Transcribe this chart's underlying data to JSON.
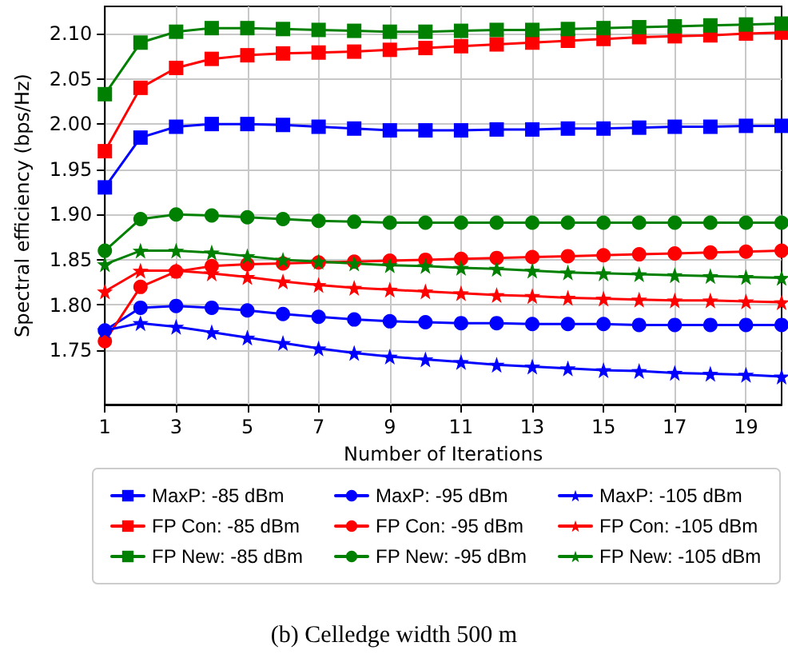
{
  "chart_data": {
    "type": "line",
    "xlabel": "Number of Iterations",
    "ylabel": "Spectral efficiency (bps/Hz)",
    "annotations": [
      "(b) Celledge width 500 m"
    ],
    "x": [
      1,
      2,
      3,
      4,
      5,
      6,
      7,
      8,
      9,
      10,
      11,
      12,
      13,
      14,
      15,
      16,
      17,
      18,
      19,
      20
    ],
    "xlim": [
      1,
      20
    ],
    "xticks": [
      1,
      3,
      5,
      7,
      9,
      11,
      13,
      15,
      17,
      19
    ],
    "ylim": [
      1.69,
      2.13
    ],
    "yticks": [
      {
        "value": 1.75,
        "label": "1.75"
      },
      {
        "value": 1.8,
        "label": "1.80"
      },
      {
        "value": 1.85,
        "label": "1.85"
      },
      {
        "value": 1.9,
        "label": "1.90"
      },
      {
        "value": 1.95,
        "label": "1.95"
      },
      {
        "value": 2.0,
        "label": "2.00"
      },
      {
        "value": 2.05,
        "label": "2.05"
      },
      {
        "value": 2.1,
        "label": "2.10"
      }
    ],
    "grid": true,
    "legend": "bottom",
    "line_style": "solid",
    "series": [
      {
        "name": "MaxP: -85 dBm",
        "color": "#0000ff",
        "marker": "square",
        "values": [
          1.93,
          1.985,
          1.997,
          2.0,
          2.0,
          1.999,
          1.997,
          1.995,
          1.993,
          1.993,
          1.993,
          1.994,
          1.994,
          1.995,
          1.995,
          1.996,
          1.997,
          1.997,
          1.998,
          1.998
        ]
      },
      {
        "name": "FP Con: -85 dBm",
        "color": "#ff0000",
        "marker": "square",
        "values": [
          1.97,
          2.04,
          2.062,
          2.072,
          2.076,
          2.078,
          2.079,
          2.08,
          2.082,
          2.084,
          2.086,
          2.088,
          2.09,
          2.092,
          2.094,
          2.096,
          2.097,
          2.098,
          2.1,
          2.101
        ]
      },
      {
        "name": "FP New: -85 dBm",
        "color": "#008000",
        "marker": "square",
        "values": [
          2.033,
          2.09,
          2.102,
          2.106,
          2.106,
          2.105,
          2.104,
          2.103,
          2.102,
          2.102,
          2.103,
          2.104,
          2.104,
          2.105,
          2.106,
          2.107,
          2.108,
          2.109,
          2.11,
          2.111
        ]
      },
      {
        "name": "MaxP: -95 dBm",
        "color": "#0000ff",
        "marker": "circle",
        "values": [
          1.772,
          1.797,
          1.799,
          1.797,
          1.794,
          1.79,
          1.787,
          1.784,
          1.782,
          1.781,
          1.78,
          1.78,
          1.779,
          1.779,
          1.779,
          1.778,
          1.778,
          1.778,
          1.778,
          1.778
        ]
      },
      {
        "name": "FP Con: -95 dBm",
        "color": "#ff0000",
        "marker": "circle",
        "values": [
          1.76,
          1.82,
          1.837,
          1.843,
          1.845,
          1.846,
          1.847,
          1.848,
          1.849,
          1.85,
          1.851,
          1.852,
          1.853,
          1.854,
          1.855,
          1.856,
          1.857,
          1.858,
          1.859,
          1.86
        ]
      },
      {
        "name": "FP New: -95 dBm",
        "color": "#008000",
        "marker": "circle",
        "values": [
          1.86,
          1.895,
          1.9,
          1.899,
          1.897,
          1.895,
          1.893,
          1.892,
          1.891,
          1.891,
          1.891,
          1.891,
          1.891,
          1.891,
          1.891,
          1.891,
          1.891,
          1.891,
          1.891,
          1.891
        ]
      },
      {
        "name": "MaxP: -105 dBm",
        "color": "#0000ff",
        "marker": "star",
        "values": [
          1.772,
          1.78,
          1.776,
          1.77,
          1.764,
          1.758,
          1.752,
          1.747,
          1.743,
          1.74,
          1.737,
          1.734,
          1.732,
          1.73,
          1.728,
          1.727,
          1.725,
          1.724,
          1.723,
          1.721
        ]
      },
      {
        "name": "FP Con: -105 dBm",
        "color": "#ff0000",
        "marker": "star",
        "values": [
          1.815,
          1.838,
          1.838,
          1.835,
          1.831,
          1.826,
          1.822,
          1.819,
          1.817,
          1.815,
          1.813,
          1.811,
          1.81,
          1.808,
          1.807,
          1.806,
          1.805,
          1.805,
          1.804,
          1.803
        ]
      },
      {
        "name": "FP New: -105 dBm",
        "color": "#008000",
        "marker": "star",
        "values": [
          1.845,
          1.86,
          1.86,
          1.858,
          1.854,
          1.85,
          1.848,
          1.846,
          1.844,
          1.843,
          1.841,
          1.84,
          1.838,
          1.836,
          1.835,
          1.834,
          1.833,
          1.832,
          1.831,
          1.83
        ]
      }
    ]
  }
}
